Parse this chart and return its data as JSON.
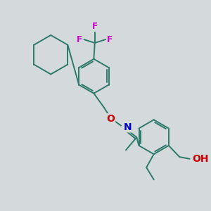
{
  "bg_color": "#d4d9dc",
  "bond_color": "#2d7a6a",
  "bond_width": 1.4,
  "F_color": "#cc00cc",
  "N_color": "#0000cc",
  "O_color": "#cc0000",
  "figsize": [
    3.0,
    3.0
  ],
  "dpi": 100,
  "xlim": [
    0,
    10
  ],
  "ylim": [
    0,
    10
  ]
}
